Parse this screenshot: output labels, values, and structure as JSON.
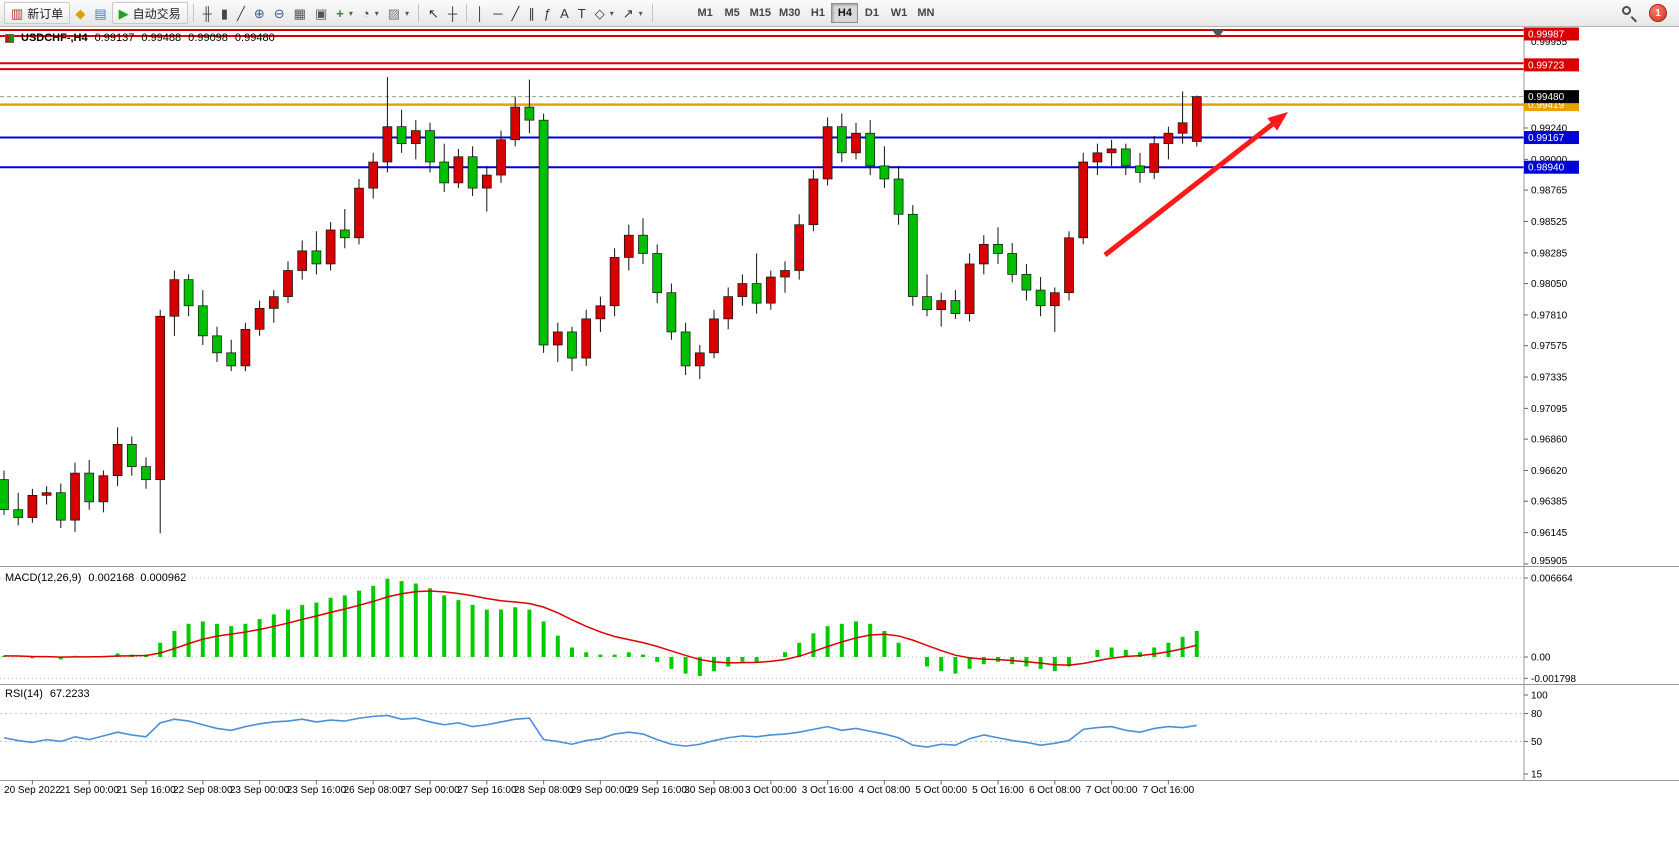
{
  "toolbar": {
    "items": [
      {
        "name": "new-order-button",
        "glyph": "▥",
        "color": "#b03333",
        "label": "新订单",
        "labeled": true
      },
      {
        "name": "metaeditor-button",
        "glyph": "◆",
        "color": "#d9a400"
      },
      {
        "name": "strategy-tester-button",
        "glyph": "▤",
        "color": "#3a7bd5"
      },
      {
        "name": "autotrading-button",
        "glyph": "▶",
        "color": "#21a121",
        "label": "自动交易",
        "labeled": true
      },
      {
        "sep": true
      },
      {
        "name": "bar-chart-button",
        "glyph": "╫",
        "color": "#444"
      },
      {
        "name": "candlestick-chart-button",
        "glyph": "▮",
        "color": "#444"
      },
      {
        "name": "line-chart-button",
        "glyph": "╱",
        "color": "#444"
      },
      {
        "name": "zoom-in-button",
        "glyph": "⊕",
        "color": "#3a5a8a"
      },
      {
        "name": "zoom-out-button",
        "glyph": "⊖",
        "color": "#3a5a8a"
      },
      {
        "name": "tile-windows-button",
        "glyph": "▦",
        "color": "#555"
      },
      {
        "name": "cascade-windows-button",
        "glyph": "▣",
        "color": "#555"
      },
      {
        "name": "indicators-button",
        "glyph": "+",
        "color": "#1f8f1f",
        "caret": true
      },
      {
        "name": "periods-button",
        "glyph": "◔",
        "color": "#334466",
        "caret": true
      },
      {
        "name": "templates-button",
        "glyph": "▨",
        "color": "#777777",
        "caret": true
      },
      {
        "sep": true
      },
      {
        "name": "cursor-button",
        "glyph": "↖",
        "color": "#333"
      },
      {
        "name": "crosshair-button",
        "glyph": "┼",
        "color": "#333"
      },
      {
        "sep": true
      },
      {
        "name": "vertical-line-button",
        "glyph": "│",
        "color": "#333"
      },
      {
        "name": "horizontal-line-button",
        "glyph": "─",
        "color": "#333"
      },
      {
        "name": "trendline-button",
        "glyph": "╱",
        "color": "#333"
      },
      {
        "name": "channel-button",
        "glyph": "∥",
        "color": "#333"
      },
      {
        "name": "fibonacci-button",
        "glyph": "ƒ",
        "color": "#333"
      },
      {
        "name": "text-button",
        "glyph": "A",
        "color": "#333"
      },
      {
        "name": "label-button",
        "glyph": "T",
        "color": "#333"
      },
      {
        "name": "shapes-button",
        "glyph": "◇",
        "color": "#333",
        "caret": true
      },
      {
        "name": "arrows-button",
        "glyph": "↗",
        "color": "#333",
        "caret": true
      },
      {
        "sep": true
      }
    ],
    "timeframes": [
      "M1",
      "M5",
      "M15",
      "M30",
      "H1",
      "H4",
      "D1",
      "W1",
      "MN"
    ],
    "selected_timeframe": "H4",
    "notification_count": "1"
  },
  "header": {
    "symbol_period": "USDCHF-,H4",
    "open": "0.99137",
    "high": "0.99488",
    "low": "0.99098",
    "close": "0.99480"
  },
  "indicators": {
    "macd": {
      "name": "MACD(12,26,9)",
      "value_main": "0.002168",
      "value_signal": "0.000962"
    },
    "rsi": {
      "name": "RSI(14)",
      "value": "67.2233"
    }
  },
  "price_scale": {
    "regular_ticks": [
      "0.99955",
      "0.99240",
      "0.99000",
      "0.98765",
      "0.98525",
      "0.98285",
      "0.98050",
      "0.97810",
      "0.97575",
      "0.97335",
      "0.97095",
      "0.96860",
      "0.96620",
      "0.96385",
      "0.96145",
      "0.95905"
    ],
    "markers": [
      {
        "price": 0.99987,
        "label": "0.99987",
        "bg": "#d80000",
        "fg": "#ffffff"
      },
      {
        "price": 0.99723,
        "label": "0.99723",
        "bg": "#d80000",
        "fg": "#ffffff"
      },
      {
        "price": 0.99419,
        "label": "0.99419",
        "bg": "#e8a200",
        "fg": "#ffffff"
      },
      {
        "price": 0.9948,
        "label": "0.99480",
        "bg": "#000000",
        "fg": "#ffffff"
      },
      {
        "price": 0.99167,
        "label": "0.99167",
        "bg": "#0000d8",
        "fg": "#ffffff"
      },
      {
        "price": 0.9894,
        "label": "0.98940",
        "bg": "#0000d8",
        "fg": "#ffffff"
      }
    ]
  },
  "chart_data": [
    {
      "type": "candlestick",
      "title": "USDCHF-,H4",
      "bull_color": "#d60000",
      "bear_color": "#00be00",
      "ylim": [
        0.959,
        1.0005
      ],
      "current_price": 0.9948,
      "h_lines": [
        {
          "price": 0.9999,
          "color": "#d80000",
          "width": 2
        },
        {
          "price": 0.99944,
          "color": "#d80000",
          "width": 2
        },
        {
          "price": 0.99735,
          "color": "#d80000",
          "width": 2
        },
        {
          "price": 0.9969,
          "color": "#d80000",
          "width": 2
        },
        {
          "price": 0.99419,
          "color": "#e8a200",
          "width": 2.5
        },
        {
          "price": 0.99167,
          "color": "#0000d8",
          "width": 2
        },
        {
          "price": 0.9894,
          "color": "#0000d8",
          "width": 2
        }
      ],
      "x_labels": [
        "20 Sep 2022",
        "21 Sep 00:00",
        "21 Sep 16:00",
        "22 Sep 08:00",
        "23 Sep 00:00",
        "23 Sep 16:00",
        "26 Sep 08:00",
        "27 Sep 00:00",
        "27 Sep 16:00",
        "28 Sep 08:00",
        "29 Sep 00:00",
        "29 Sep 16:00",
        "30 Sep 08:00",
        "3 Oct 00:00",
        "3 Oct 16:00",
        "4 Oct 08:00",
        "5 Oct 00:00",
        "5 Oct 16:00",
        "6 Oct 08:00",
        "7 Oct 00:00",
        "7 Oct 16:00"
      ],
      "candles": [
        [
          0.9655,
          0.9662,
          0.9628,
          0.9632
        ],
        [
          0.9632,
          0.9645,
          0.962,
          0.9626
        ],
        [
          0.9626,
          0.9648,
          0.9622,
          0.9643
        ],
        [
          0.9643,
          0.965,
          0.9636,
          0.9645
        ],
        [
          0.9645,
          0.9652,
          0.9618,
          0.9624
        ],
        [
          0.9624,
          0.9668,
          0.9615,
          0.966
        ],
        [
          0.966,
          0.967,
          0.9632,
          0.9638
        ],
        [
          0.9638,
          0.9662,
          0.963,
          0.9658
        ],
        [
          0.9658,
          0.9695,
          0.965,
          0.9682
        ],
        [
          0.9682,
          0.9688,
          0.9658,
          0.9665
        ],
        [
          0.9665,
          0.9672,
          0.9648,
          0.9655
        ],
        [
          0.9655,
          0.9785,
          0.9614,
          0.978
        ],
        [
          0.978,
          0.9815,
          0.9765,
          0.9808
        ],
        [
          0.9808,
          0.9812,
          0.978,
          0.9788
        ],
        [
          0.9788,
          0.98,
          0.9758,
          0.9765
        ],
        [
          0.9765,
          0.9772,
          0.9745,
          0.9752
        ],
        [
          0.9752,
          0.9762,
          0.9738,
          0.9742
        ],
        [
          0.9742,
          0.9775,
          0.9738,
          0.977
        ],
        [
          0.977,
          0.9792,
          0.9765,
          0.9786
        ],
        [
          0.9786,
          0.98,
          0.9775,
          0.9795
        ],
        [
          0.9795,
          0.9822,
          0.979,
          0.9815
        ],
        [
          0.9815,
          0.9838,
          0.9808,
          0.983
        ],
        [
          0.983,
          0.9845,
          0.9812,
          0.982
        ],
        [
          0.982,
          0.9852,
          0.9815,
          0.9846
        ],
        [
          0.9846,
          0.9862,
          0.9832,
          0.984
        ],
        [
          0.984,
          0.9885,
          0.9835,
          0.9878
        ],
        [
          0.9878,
          0.9905,
          0.987,
          0.9898
        ],
        [
          0.9898,
          0.9963,
          0.989,
          0.9925
        ],
        [
          0.9925,
          0.9938,
          0.9905,
          0.9912
        ],
        [
          0.9912,
          0.993,
          0.99,
          0.9922
        ],
        [
          0.9922,
          0.9928,
          0.989,
          0.9898
        ],
        [
          0.9898,
          0.9912,
          0.9875,
          0.9882
        ],
        [
          0.9882,
          0.9908,
          0.9878,
          0.9902
        ],
        [
          0.9902,
          0.991,
          0.9872,
          0.9878
        ],
        [
          0.9878,
          0.9895,
          0.986,
          0.9888
        ],
        [
          0.9888,
          0.9922,
          0.9882,
          0.9915
        ],
        [
          0.9915,
          0.9948,
          0.991,
          0.994
        ],
        [
          0.994,
          0.9961,
          0.992,
          0.993
        ],
        [
          0.993,
          0.9935,
          0.9752,
          0.9758
        ],
        [
          0.9758,
          0.9775,
          0.9745,
          0.9768
        ],
        [
          0.9768,
          0.9772,
          0.9738,
          0.9748
        ],
        [
          0.9748,
          0.9785,
          0.9742,
          0.9778
        ],
        [
          0.9778,
          0.9795,
          0.9768,
          0.9788
        ],
        [
          0.9788,
          0.9832,
          0.978,
          0.9825
        ],
        [
          0.9825,
          0.985,
          0.9815,
          0.9842
        ],
        [
          0.9842,
          0.9855,
          0.982,
          0.9828
        ],
        [
          0.9828,
          0.9835,
          0.979,
          0.9798
        ],
        [
          0.9798,
          0.9805,
          0.9762,
          0.9768
        ],
        [
          0.9768,
          0.9775,
          0.9735,
          0.9742
        ],
        [
          0.9742,
          0.9758,
          0.9732,
          0.9752
        ],
        [
          0.9752,
          0.9785,
          0.9748,
          0.9778
        ],
        [
          0.9778,
          0.9802,
          0.977,
          0.9795
        ],
        [
          0.9795,
          0.9812,
          0.9788,
          0.9805
        ],
        [
          0.9805,
          0.9828,
          0.9782,
          0.979
        ],
        [
          0.979,
          0.9815,
          0.9785,
          0.981
        ],
        [
          0.981,
          0.9822,
          0.9798,
          0.9815
        ],
        [
          0.9815,
          0.9858,
          0.9808,
          0.985
        ],
        [
          0.985,
          0.9892,
          0.9845,
          0.9885
        ],
        [
          0.9885,
          0.9932,
          0.988,
          0.9925
        ],
        [
          0.9925,
          0.9935,
          0.9898,
          0.9905
        ],
        [
          0.9905,
          0.9928,
          0.99,
          0.992
        ],
        [
          0.992,
          0.993,
          0.9888,
          0.9895
        ],
        [
          0.9895,
          0.991,
          0.9878,
          0.9885
        ],
        [
          0.9885,
          0.9895,
          0.985,
          0.9858
        ],
        [
          0.9858,
          0.9865,
          0.9788,
          0.9795
        ],
        [
          0.9795,
          0.9812,
          0.978,
          0.9785
        ],
        [
          0.9785,
          0.9798,
          0.9772,
          0.9792
        ],
        [
          0.9792,
          0.98,
          0.9778,
          0.9782
        ],
        [
          0.9782,
          0.9828,
          0.9776,
          0.982
        ],
        [
          0.982,
          0.9842,
          0.9812,
          0.9835
        ],
        [
          0.9835,
          0.9848,
          0.982,
          0.9828
        ],
        [
          0.9828,
          0.9836,
          0.9806,
          0.9812
        ],
        [
          0.9812,
          0.982,
          0.9792,
          0.98
        ],
        [
          0.98,
          0.981,
          0.978,
          0.9788
        ],
        [
          0.9788,
          0.9802,
          0.9768,
          0.9798
        ],
        [
          0.9798,
          0.9845,
          0.9792,
          0.984
        ],
        [
          0.984,
          0.9905,
          0.9835,
          0.9898
        ],
        [
          0.9898,
          0.9912,
          0.9888,
          0.9905
        ],
        [
          0.9905,
          0.9915,
          0.9895,
          0.9908
        ],
        [
          0.9908,
          0.9912,
          0.9888,
          0.9895
        ],
        [
          0.9895,
          0.9905,
          0.9882,
          0.989
        ],
        [
          0.989,
          0.9918,
          0.9885,
          0.9912
        ],
        [
          0.9912,
          0.9925,
          0.99,
          0.992
        ],
        [
          0.992,
          0.9952,
          0.9912,
          0.9928
        ],
        [
          0.99137,
          0.99488,
          0.99098,
          0.9948
        ]
      ]
    },
    {
      "type": "macd",
      "params": "12,26,9",
      "y_ticks": [
        "0.006664",
        "0.00",
        "-0.001798"
      ],
      "y_tick_values": [
        0.006664,
        0,
        -0.001798
      ],
      "hist_color": "#00cc00",
      "signal_color": "#dd0000",
      "values": [
        0.0001,
        0.0,
        -0.0001,
        0.0,
        -0.0002,
        0.0001,
        0.0,
        0.0001,
        0.0003,
        0.0002,
        0.0002,
        0.0012,
        0.0022,
        0.0028,
        0.003,
        0.0028,
        0.0026,
        0.0028,
        0.0032,
        0.0036,
        0.004,
        0.0044,
        0.0046,
        0.005,
        0.0052,
        0.0056,
        0.006,
        0.0066,
        0.0064,
        0.0062,
        0.0058,
        0.0052,
        0.0048,
        0.0044,
        0.004,
        0.004,
        0.0042,
        0.004,
        0.003,
        0.0018,
        0.0008,
        0.0004,
        0.0002,
        0.0002,
        0.0004,
        0.0002,
        -0.0004,
        -0.001,
        -0.0014,
        -0.0016,
        -0.0012,
        -0.0008,
        -0.0004,
        -0.0004,
        0.0,
        0.0004,
        0.0012,
        0.002,
        0.0026,
        0.0028,
        0.003,
        0.0028,
        0.0022,
        0.0012,
        0.0,
        -0.0008,
        -0.0012,
        -0.0014,
        -0.001,
        -0.0006,
        -0.0004,
        -0.0006,
        -0.0008,
        -0.001,
        -0.0012,
        -0.0008,
        0.0,
        0.0006,
        0.0008,
        0.0006,
        0.0004,
        0.0008,
        0.0012,
        0.0017,
        0.0022
      ]
    },
    {
      "type": "rsi",
      "period": 14,
      "y_ticks": [
        "100",
        "80",
        "50",
        "15"
      ],
      "y_tick_values": [
        100,
        80,
        50,
        15
      ],
      "levels": [
        80,
        50
      ],
      "color": "#4a90d8",
      "values": [
        54,
        51,
        49,
        52,
        50,
        55,
        52,
        56,
        60,
        57,
        55,
        70,
        74,
        72,
        68,
        64,
        62,
        66,
        69,
        71,
        72,
        74,
        71,
        73,
        72,
        75,
        77,
        78,
        74,
        75,
        71,
        68,
        70,
        66,
        68,
        71,
        74,
        75,
        52,
        50,
        47,
        51,
        53,
        58,
        60,
        58,
        52,
        47,
        45,
        47,
        51,
        54,
        56,
        55,
        57,
        58,
        60,
        63,
        66,
        62,
        64,
        61,
        58,
        54,
        46,
        44,
        47,
        46,
        53,
        57,
        54,
        51,
        49,
        46,
        48,
        51,
        63,
        65,
        66,
        62,
        60,
        64,
        66,
        65,
        67.22
      ]
    }
  ],
  "annotations": [
    {
      "type": "arrow",
      "color": "#ff1a1a",
      "from": [
        1105,
        228
      ],
      "to": [
        1288,
        85
      ]
    }
  ]
}
